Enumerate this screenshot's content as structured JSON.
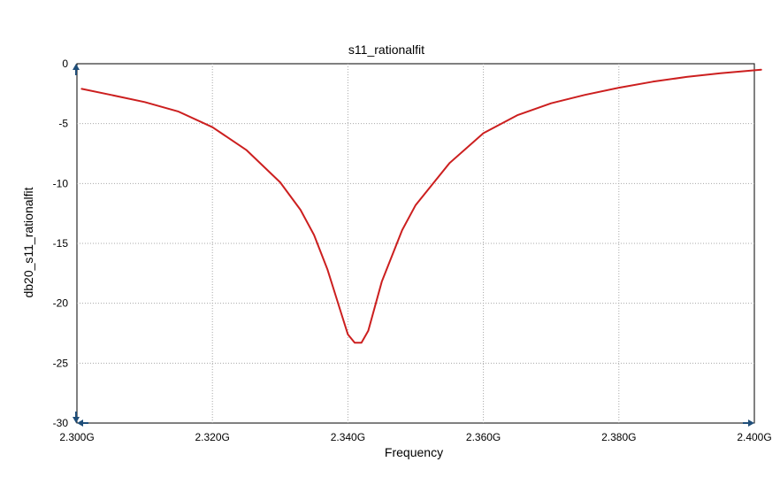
{
  "colors": {
    "series": "#cc1f1f",
    "grid": "#a8a8a8",
    "frame": "#000000",
    "markers": "#1f4e79"
  },
  "chart_data": {
    "type": "line",
    "title": "s11_rationalfit",
    "xlabel": "Frequency",
    "ylabel": "db20_s11_rationalfit",
    "xlim": [
      2.3,
      2.4
    ],
    "ylim": [
      -30,
      0
    ],
    "grid": true,
    "legend": "none",
    "x_ticks": [
      2.3,
      2.32,
      2.34,
      2.36,
      2.38,
      2.4
    ],
    "x_tick_labels": [
      "2.300G",
      "2.320G",
      "2.340G",
      "2.360G",
      "2.380G",
      "2.400G"
    ],
    "y_ticks": [
      0,
      -5,
      -10,
      -15,
      -20,
      -25,
      -30
    ],
    "y_tick_labels": [
      "0",
      "-5",
      "-10",
      "-15",
      "-20",
      "-25",
      "-30"
    ],
    "series": [
      {
        "color": "#cc1f1f",
        "x": [
          2.3007,
          2.305,
          2.31,
          2.315,
          2.32,
          2.325,
          2.33,
          2.333,
          2.335,
          2.337,
          2.339,
          2.34,
          2.341,
          2.342,
          2.343,
          2.345,
          2.348,
          2.35,
          2.355,
          2.36,
          2.365,
          2.37,
          2.375,
          2.38,
          2.385,
          2.39,
          2.395,
          2.401
        ],
        "y": [
          -2.1,
          -2.6,
          -3.2,
          -4.0,
          -5.3,
          -7.2,
          -9.9,
          -12.2,
          -14.3,
          -17.2,
          -20.8,
          -22.6,
          -23.3,
          -23.3,
          -22.3,
          -18.2,
          -13.9,
          -11.8,
          -8.3,
          -5.8,
          -4.3,
          -3.3,
          -2.6,
          -2.0,
          -1.5,
          -1.1,
          -0.8,
          -0.5
        ]
      }
    ]
  }
}
